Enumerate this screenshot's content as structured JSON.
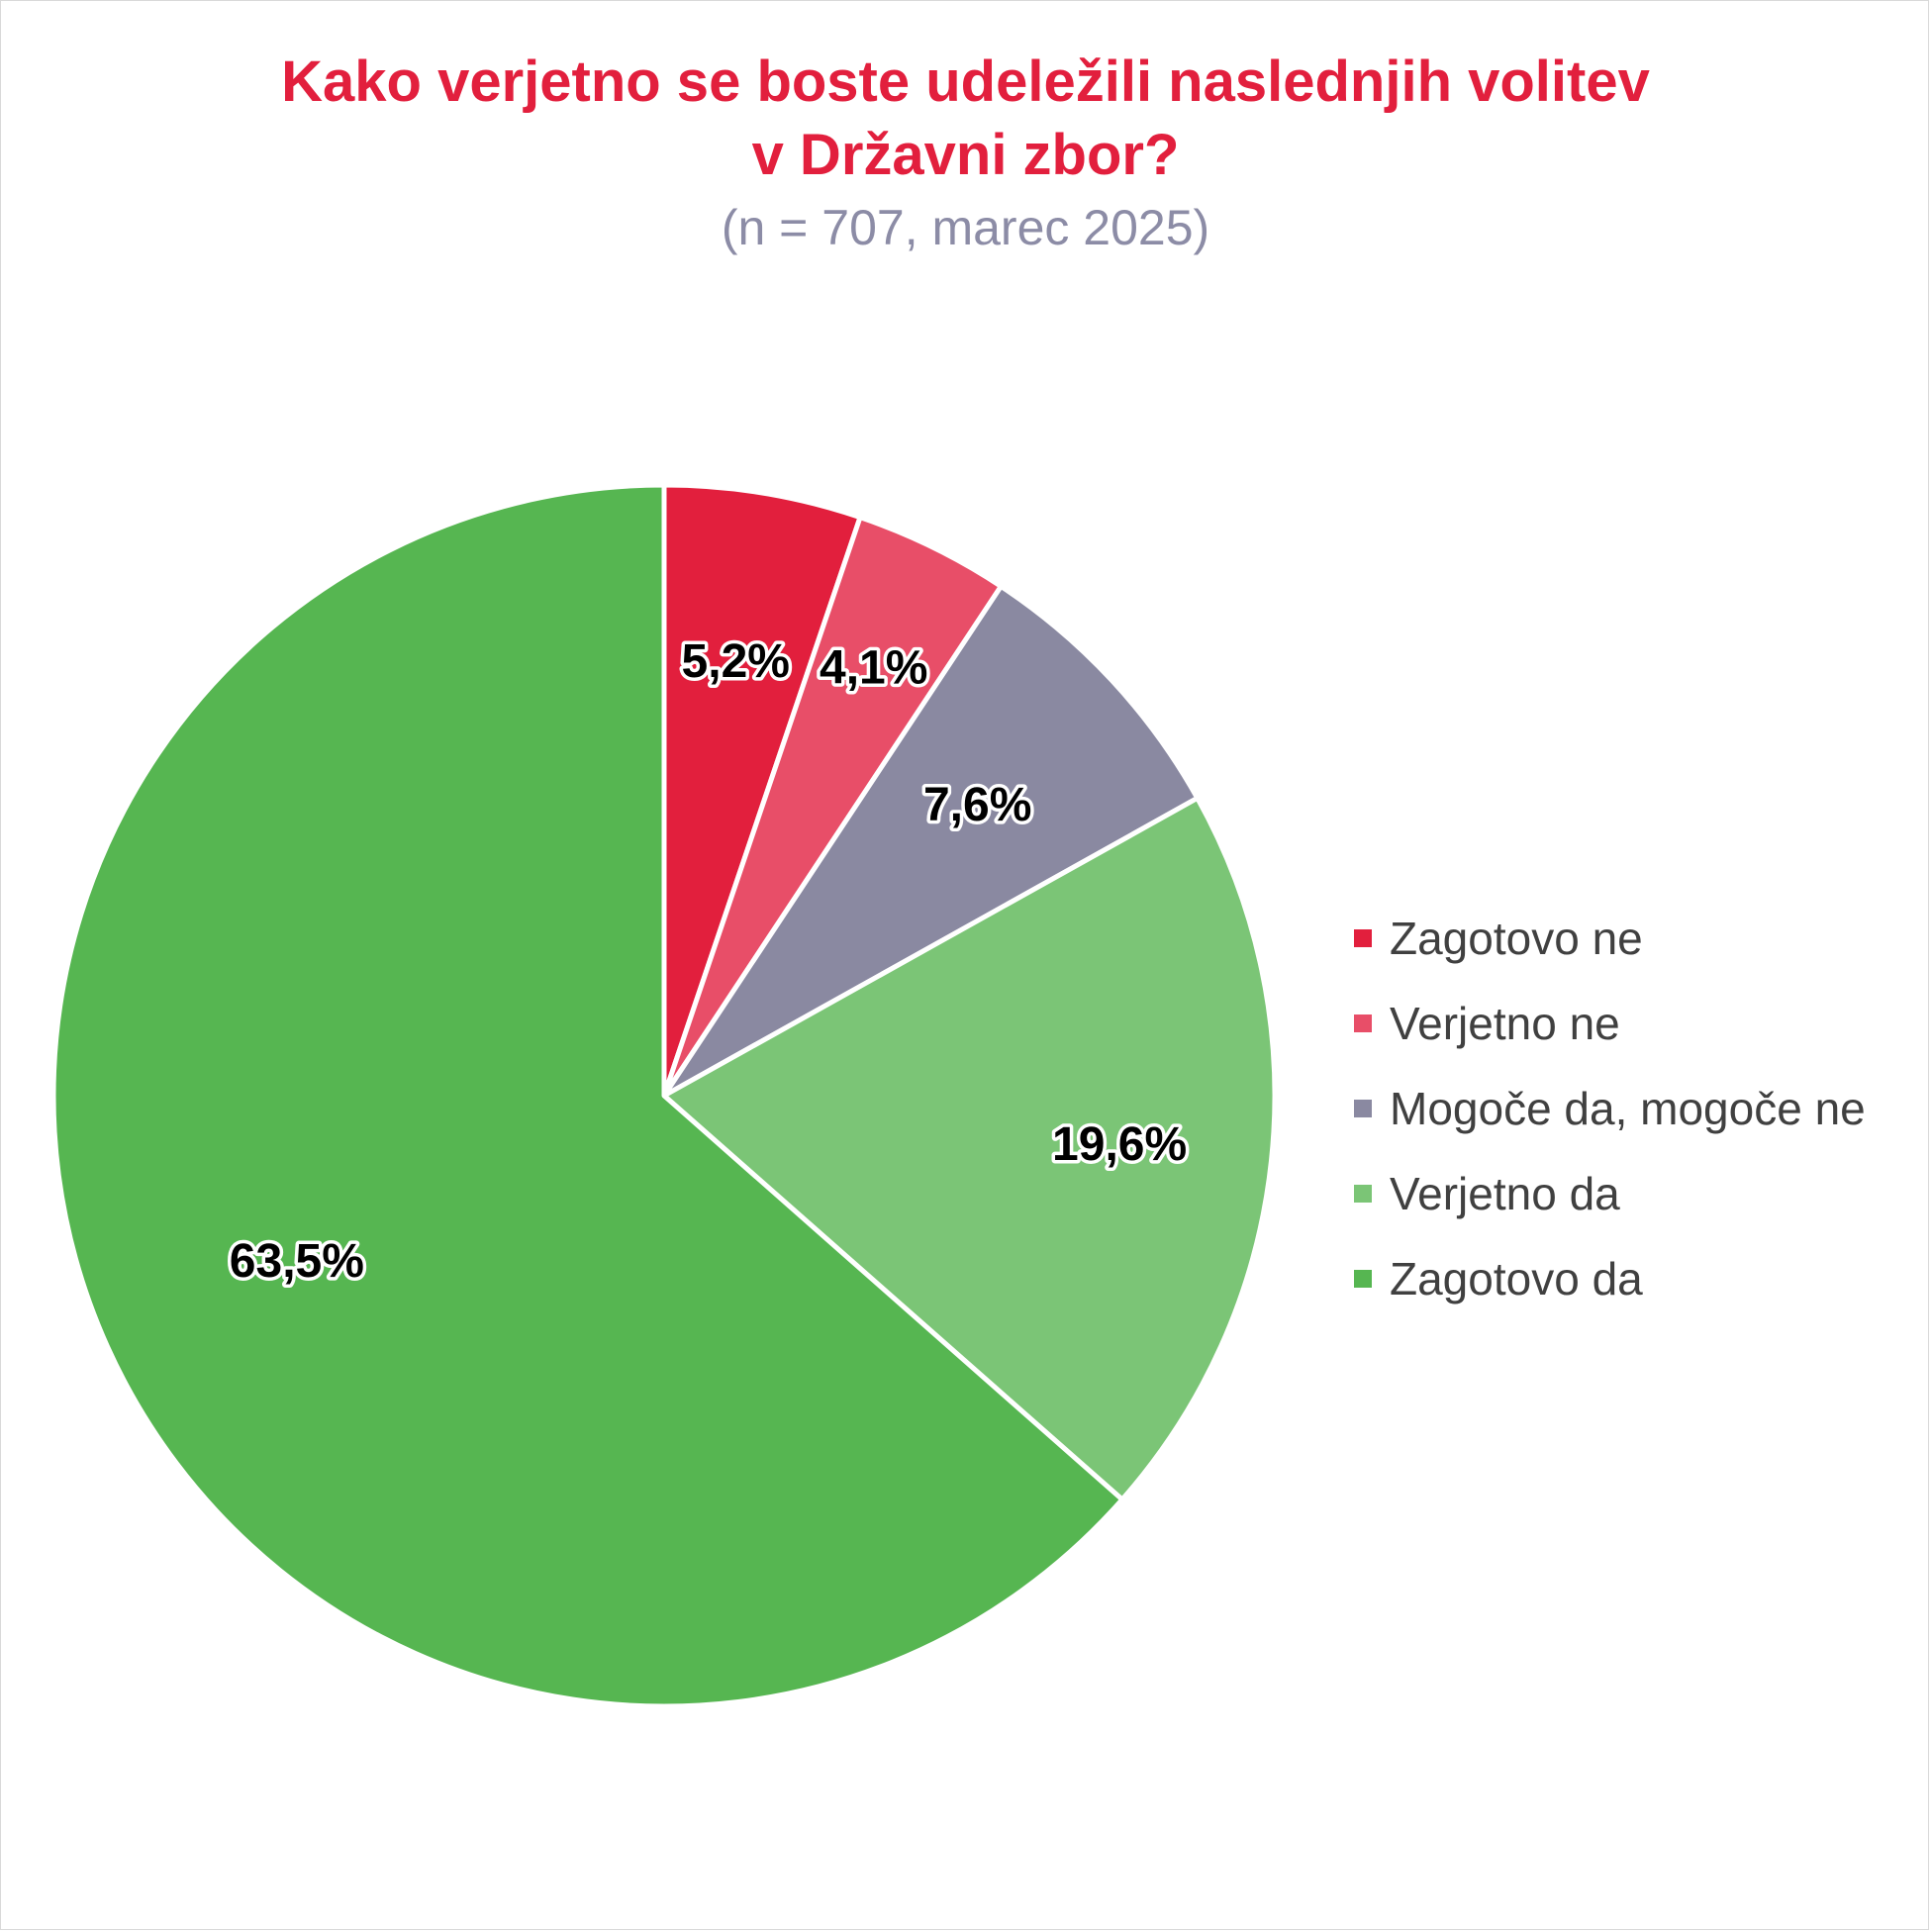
{
  "chart_data": {
    "type": "pie",
    "title_lines": [
      "Kako verjetno se boste udeležili naslednjih volitev",
      "v Državni zbor?"
    ],
    "subtitle": "(n = 707, marec 2025)",
    "legend_position": "right",
    "slices": [
      {
        "name": "Zagotovo ne",
        "value": 5.2,
        "label": "5,2%",
        "color": "#e21f3d"
      },
      {
        "name": "Verjetno ne",
        "value": 4.1,
        "label": "4,1%",
        "color": "#e84e68"
      },
      {
        "name": "Mogoče da, mogoče ne",
        "value": 7.6,
        "label": "7,6%",
        "color": "#8a89a1"
      },
      {
        "name": "Verjetno da",
        "value": 19.6,
        "label": "19,6%",
        "color": "#7bc576"
      },
      {
        "name": "Zagotovo da",
        "value": 63.5,
        "label": "63,5%",
        "color": "#56b651"
      }
    ]
  }
}
